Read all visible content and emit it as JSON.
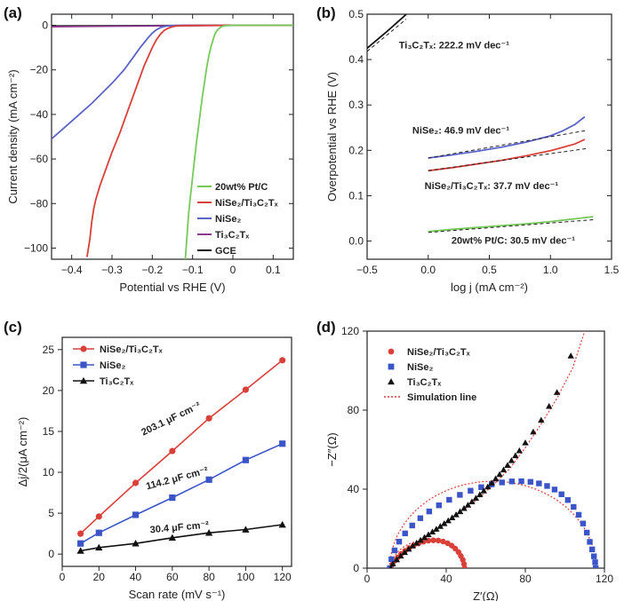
{
  "chart_data": [
    {
      "panel": "(a)",
      "type": "line",
      "xlabel": "Potential vs RHE (V)",
      "ylabel": "Current density (mA cm⁻²)",
      "xlim": [
        -0.45,
        0.15
      ],
      "ylim": [
        -105,
        5
      ],
      "xticks": [
        -0.4,
        -0.3,
        -0.2,
        -0.1,
        0.0,
        0.1
      ],
      "xtick_labels": [
        "−0.4",
        "−0.3",
        "−0.2",
        "−0.1",
        "0",
        "0.1"
      ],
      "yticks": [
        0,
        -20,
        -40,
        -60,
        -80,
        -100
      ],
      "ytick_labels": [
        "0",
        "−20",
        "−40",
        "−60",
        "−80",
        "−100"
      ],
      "legend_position": "lower-right",
      "series": [
        {
          "name": "20wt% Pt/C",
          "color": "#77c95a",
          "x": [
            -0.118,
            -0.114,
            -0.11,
            -0.106,
            -0.1,
            -0.095,
            -0.09,
            -0.085,
            -0.08,
            -0.075,
            -0.07,
            -0.065,
            -0.06,
            -0.055,
            -0.05,
            -0.045,
            -0.04,
            -0.035,
            -0.03,
            -0.025,
            -0.02,
            -0.01,
            0.0,
            0.05,
            0.15
          ],
          "y": [
            -105,
            -95,
            -85,
            -78,
            -68,
            -60,
            -52,
            -45,
            -38,
            -31,
            -25,
            -19,
            -14,
            -10,
            -7,
            -4,
            -2.5,
            -1.5,
            -0.8,
            -0.4,
            -0.2,
            -0.1,
            0,
            0,
            0
          ]
        },
        {
          "name": "NiSe₂/Ti₃C₂Tₓ",
          "color": "#d9403a",
          "x": [
            -0.362,
            -0.355,
            -0.35,
            -0.345,
            -0.34,
            -0.33,
            -0.32,
            -0.3,
            -0.28,
            -0.26,
            -0.24,
            -0.22,
            -0.2,
            -0.19,
            -0.18,
            -0.17,
            -0.16,
            -0.15,
            -0.14,
            -0.12,
            0.0,
            0.15
          ],
          "y": [
            -104,
            -96,
            -88,
            -82,
            -78,
            -72,
            -67,
            -57,
            -48,
            -38,
            -28,
            -18,
            -10,
            -6.5,
            -4,
            -2.2,
            -1.2,
            -0.6,
            -0.3,
            -0.1,
            0,
            0
          ]
        },
        {
          "name": "NiSe₂",
          "color": "#5b63c9",
          "x": [
            -0.45,
            -0.4,
            -0.35,
            -0.3,
            -0.27,
            -0.25,
            -0.23,
            -0.21,
            -0.2,
            -0.19,
            -0.18,
            -0.17,
            -0.16,
            -0.14,
            -0.12,
            0.0,
            0.15
          ],
          "y": [
            -51,
            -43,
            -35,
            -26,
            -20,
            -15,
            -10,
            -5.5,
            -3.5,
            -2,
            -1,
            -0.5,
            -0.2,
            -0.1,
            0,
            0,
            0
          ]
        },
        {
          "name": "Ti₃C₂Tₓ",
          "color": "#8e3a8f",
          "x": [
            -0.45,
            -0.3,
            -0.2,
            -0.1,
            0.0,
            0.15
          ],
          "y": [
            -0.6,
            -0.4,
            -0.25,
            -0.1,
            0,
            0
          ]
        },
        {
          "name": "GCE",
          "color": "#111111",
          "x": [
            -0.45,
            -0.3,
            -0.1,
            0.0,
            0.15
          ],
          "y": [
            -0.3,
            -0.2,
            -0.05,
            0,
            0
          ]
        }
      ]
    },
    {
      "panel": "(b)",
      "type": "line",
      "xlabel": "log j (mA cm⁻²)",
      "ylabel": "Overpotential vs RHE (V)",
      "xlim": [
        -0.5,
        1.5
      ],
      "ylim": [
        -0.04,
        0.5
      ],
      "xticks": [
        -0.5,
        0.0,
        0.5,
        1.0,
        1.5
      ],
      "xtick_labels": [
        "−0.5",
        "0.0",
        "0.5",
        "1.0",
        "1.5"
      ],
      "yticks": [
        0.0,
        0.1,
        0.2,
        0.3,
        0.4,
        0.5
      ],
      "ytick_labels": [
        "0.0",
        "0.1",
        "0.2",
        "0.3",
        "0.4",
        "0.5"
      ],
      "series": [
        {
          "name": "Ti₃C₂Tₓ",
          "color": "#111111",
          "x": [
            -0.5,
            -0.35,
            -0.2,
            -0.18
          ],
          "y": [
            0.425,
            0.459,
            0.495,
            0.5
          ]
        },
        {
          "name": "NiSe₂",
          "color": "#5b63c9",
          "x": [
            0.0,
            0.2,
            0.4,
            0.6,
            0.8,
            1.0,
            1.1,
            1.2,
            1.28
          ],
          "y": [
            0.183,
            0.19,
            0.198,
            0.207,
            0.218,
            0.232,
            0.243,
            0.257,
            0.274
          ]
        },
        {
          "name": "NiSe₂/Ti₃C₂Tₓ",
          "color": "#d9403a",
          "x": [
            0.0,
            0.2,
            0.4,
            0.6,
            0.8,
            1.0,
            1.2,
            1.28
          ],
          "y": [
            0.155,
            0.162,
            0.17,
            0.178,
            0.188,
            0.199,
            0.214,
            0.224
          ]
        },
        {
          "name": "20wt% Pt/C",
          "color": "#77c95a",
          "x": [
            0.0,
            0.2,
            0.4,
            0.6,
            0.8,
            1.0,
            1.2,
            1.35
          ],
          "y": [
            0.021,
            0.026,
            0.03,
            0.034,
            0.038,
            0.043,
            0.049,
            0.054
          ]
        }
      ],
      "fits": [
        {
          "x": [
            -0.5,
            -0.18
          ],
          "y": [
            0.418,
            0.489
          ]
        },
        {
          "x": [
            0.0,
            1.3
          ],
          "y": [
            0.183,
            0.244
          ]
        },
        {
          "x": [
            0.0,
            1.3
          ],
          "y": [
            0.155,
            0.204
          ]
        },
        {
          "x": [
            0.0,
            1.35
          ],
          "y": [
            0.019,
            0.047
          ]
        }
      ],
      "annotations": [
        {
          "text": "Ti₃C₂Tₓ: 222.2 mV dec⁻¹",
          "x": -0.24,
          "y": 0.425
        },
        {
          "text": "NiSe₂: 46.9 mV dec⁻¹",
          "x": -0.13,
          "y": 0.237
        },
        {
          "text": "NiSe₂/Ti₃C₂Tₓ: 37.7 mV dec⁻¹",
          "x": -0.03,
          "y": 0.115
        },
        {
          "text": "20wt% Pt/C: 30.5 mV dec⁻¹",
          "x": 0.19,
          "y": -0.006
        }
      ]
    },
    {
      "panel": "(c)",
      "type": "line",
      "xlabel": "Scan rate (mV s⁻¹)",
      "ylabel": "Δj/2(μA cm⁻²)",
      "xlim": [
        0,
        125
      ],
      "ylim": [
        -1.5,
        26.5
      ],
      "xticks": [
        0,
        20,
        40,
        60,
        80,
        100,
        120
      ],
      "yticks": [
        0,
        5,
        10,
        15,
        20,
        25
      ],
      "legend_position": "top-left",
      "series": [
        {
          "name": "NiSe₂/Ti₃C₂Tₓ",
          "color": "#d9403a",
          "marker": "circle",
          "x": [
            10,
            20,
            40,
            60,
            80,
            100,
            120
          ],
          "y": [
            2.5,
            4.6,
            8.7,
            12.6,
            16.6,
            20.1,
            23.7
          ]
        },
        {
          "name": "NiSe₂",
          "color": "#3b55c9",
          "marker": "square",
          "x": [
            10,
            20,
            40,
            60,
            80,
            100,
            120
          ],
          "y": [
            1.3,
            2.6,
            4.8,
            6.9,
            9.1,
            11.5,
            13.5
          ]
        },
        {
          "name": "Ti₃C₂Tₓ",
          "color": "#111111",
          "marker": "triangle",
          "x": [
            10,
            20,
            40,
            60,
            80,
            100,
            120
          ],
          "y": [
            0.4,
            0.8,
            1.3,
            2.0,
            2.6,
            3.0,
            3.6
          ]
        }
      ],
      "annotations": [
        {
          "text": "203.1 μF cm⁻²",
          "x": 60,
          "y": 16.2,
          "angle": -26
        },
        {
          "text": "114.2 μF cm⁻²",
          "x": 63,
          "y": 8.9,
          "angle": -15
        },
        {
          "text": "30.4 μF cm⁻²",
          "x": 64,
          "y": 2.9,
          "angle": -5
        }
      ]
    },
    {
      "panel": "(d)",
      "type": "scatter",
      "xlabel": "Z′(Ω)",
      "ylabel": "−Z″(Ω)",
      "xlim": [
        0,
        120
      ],
      "ylim": [
        0,
        120
      ],
      "xticks": [
        0,
        40,
        80,
        120
      ],
      "yticks": [
        0,
        40,
        80,
        120
      ],
      "legend_position": "top-left",
      "series": [
        {
          "name": "NiSe₂/Ti₃C₂Tₓ",
          "color": "#d9403a",
          "marker": "circle",
          "x": [
            12.0,
            12.8,
            14.0,
            15.5,
            17.2,
            19.2,
            21.3,
            23.6,
            26.0,
            28.5,
            31.0,
            33.5,
            36.0,
            38.4,
            40.7,
            42.8,
            44.6,
            46.2,
            47.4,
            48.4,
            49.0,
            49.3
          ],
          "y": [
            0.0,
            1.9,
            3.8,
            5.5,
            7.2,
            8.8,
            10.2,
            11.5,
            12.5,
            13.4,
            13.9,
            14.1,
            14.0,
            13.5,
            12.6,
            11.4,
            9.9,
            8.1,
            6.2,
            4.2,
            2.1,
            0.0
          ]
        },
        {
          "name": "NiSe₂",
          "color": "#3b55c9",
          "marker": "square",
          "x": [
            11.5,
            12.3,
            13.9,
            16.2,
            19.2,
            22.8,
            26.9,
            31.4,
            36.3,
            41.5,
            46.9,
            52.3,
            57.7,
            63.0,
            68.2,
            73.2,
            78.0,
            82.6,
            86.9,
            91.0,
            94.8,
            98.3,
            101.5,
            104.4,
            107.0,
            109.2,
            111.1,
            112.6,
            113.8,
            114.7,
            115.3,
            115.6
          ],
          "y": [
            0.0,
            4.5,
            9.0,
            13.4,
            17.6,
            21.6,
            25.3,
            28.7,
            31.8,
            34.6,
            37.1,
            39.2,
            41.0,
            42.4,
            43.4,
            43.9,
            44.0,
            43.7,
            42.9,
            41.6,
            39.8,
            37.4,
            34.5,
            31.0,
            27.0,
            22.6,
            18.0,
            13.3,
            9.5,
            6.0,
            3.0,
            0.0
          ]
        },
        {
          "name": "Ti₃C₂Tₓ",
          "color": "#111111",
          "marker": "triangle",
          "x": [
            12,
            13,
            15,
            17,
            19,
            21,
            23,
            25,
            27,
            29,
            31,
            33,
            35,
            37,
            39,
            41,
            43,
            45,
            47,
            49,
            51,
            53,
            55,
            57,
            59,
            61,
            63,
            65,
            67,
            69,
            71,
            73,
            75,
            77,
            80,
            84,
            88,
            92,
            96,
            103
          ],
          "y": [
            0.0,
            2.2,
            4.3,
            6.2,
            8.0,
            9.7,
            11.3,
            12.8,
            14.2,
            15.6,
            17.0,
            18.4,
            19.8,
            21.2,
            22.6,
            24.1,
            25.6,
            27.1,
            28.7,
            30.3,
            32.0,
            33.7,
            35.5,
            37.3,
            39.2,
            41.2,
            43.2,
            45.3,
            47.5,
            49.8,
            52.1,
            54.5,
            57.0,
            59.5,
            63.5,
            69.0,
            75.0,
            82.0,
            89.0,
            107.5
          ]
        }
      ],
      "simulation_line": {
        "name": "Simulation line",
        "color": "#d9403a",
        "semicircles": [
          {
            "start": 12.0,
            "end": 49.3,
            "scale": 0.76
          },
          {
            "start": 11.5,
            "end": 115.6,
            "scale": 0.845
          }
        ],
        "tail": {
          "x": [
            12,
            18,
            25,
            32,
            40,
            48,
            56,
            64,
            72,
            80,
            88,
            96,
            104,
            110
          ],
          "y": [
            0,
            7.0,
            12.8,
            17.8,
            23.3,
            29.0,
            35.0,
            42.4,
            50.2,
            61.0,
            73.0,
            86.0,
            101.5,
            120
          ]
        }
      }
    }
  ]
}
